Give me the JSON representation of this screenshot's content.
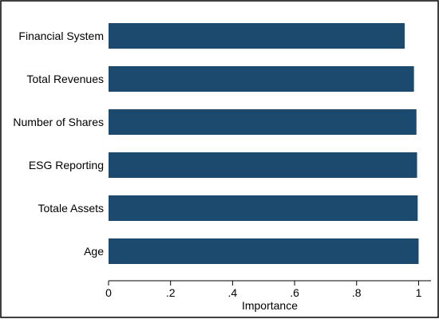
{
  "chart_data": {
    "type": "bar",
    "orientation": "horizontal",
    "categories": [
      "Financial System",
      "Total Revenues",
      "Number of Shares",
      "ESG Reporting",
      "Totale Assets",
      "Age"
    ],
    "values": [
      0.955,
      0.985,
      0.993,
      0.995,
      0.997,
      1.0
    ],
    "xlabel": "Importance",
    "ylabel": "",
    "title": "",
    "xlim": [
      0,
      1.04
    ],
    "xticks": [
      "0",
      ".2",
      ".4",
      ".6",
      ".8",
      "1"
    ],
    "xtick_values": [
      0,
      0.2,
      0.4,
      0.6,
      0.8,
      1.0
    ],
    "grid": false,
    "legend": "none",
    "colors": {
      "bar": "#1b4a6e",
      "frame": "#000000",
      "background": "#ffffff"
    }
  }
}
